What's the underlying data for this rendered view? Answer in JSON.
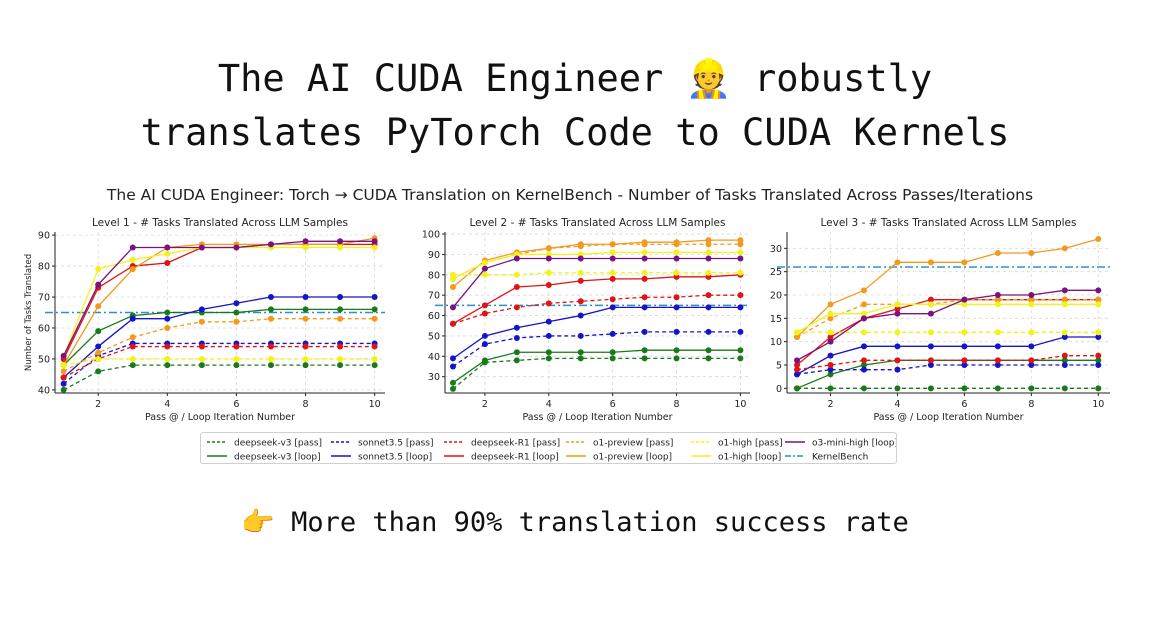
{
  "headline": {
    "line1_before": "The AI CUDA Engineer ",
    "emoji": "👷",
    "line1_after": " robustly",
    "line2": "translates PyTorch Code to CUDA Kernels"
  },
  "tagline": {
    "emoji": "👉",
    "text": " More than 90% translation success rate"
  },
  "chart_data": {
    "suptitle": "The AI CUDA Engineer: Torch → CUDA Translation on KernelBench - Number of Tasks Translated Across Passes/Iterations",
    "legend": [
      {
        "name": "deepseek-v3 [pass]",
        "color": "#1a7a1a",
        "dash": true
      },
      {
        "name": "sonnet3.5 [pass]",
        "color": "#1414c8",
        "dash": true
      },
      {
        "name": "deepseek-R1 [pass]",
        "color": "#e01414",
        "dash": true
      },
      {
        "name": "o1-preview [pass]",
        "color": "#f29a1e",
        "dash": true
      },
      {
        "name": "o1-high [pass]",
        "color": "#f5f21a",
        "dash": true
      },
      {
        "name": "o3-mini-high [loop]",
        "color": "#7a1280",
        "dash": false
      },
      {
        "name": "deepseek-v3 [loop]",
        "color": "#1a7a1a",
        "dash": false
      },
      {
        "name": "sonnet3.5 [loop]",
        "color": "#1414c8",
        "dash": false
      },
      {
        "name": "deepseek-R1 [loop]",
        "color": "#e01414",
        "dash": false
      },
      {
        "name": "o1-preview [loop]",
        "color": "#f29a1e",
        "dash": false
      },
      {
        "name": "o1-high [loop]",
        "color": "#f5f21a",
        "dash": false
      },
      {
        "name": "KernelBench",
        "color": "#2a8fd0",
        "dashdot": true
      }
    ],
    "charts": [
      {
        "type": "line",
        "title": "Level 1 - # Tasks Translated Across LLM Samples",
        "xlabel": "Pass @ / Loop Iteration Number",
        "ylabel": "Number of Tasks Translated",
        "xlim": [
          0.75,
          10.3
        ],
        "ylim": [
          39,
          91
        ],
        "xticks": [
          2,
          4,
          6,
          8,
          10
        ],
        "yticks": [
          40,
          50,
          60,
          70,
          80,
          90
        ],
        "x": [
          1,
          2,
          3,
          4,
          5,
          6,
          7,
          8,
          9,
          10
        ],
        "kernelbench": 65,
        "series": [
          {
            "name": "deepseek-v3 [pass]",
            "values": [
              40,
              46,
              48,
              48,
              48,
              48,
              48,
              48,
              48,
              48
            ]
          },
          {
            "name": "sonnet3.5 [pass]",
            "values": [
              42,
              51,
              55,
              55,
              55,
              55,
              55,
              55,
              55,
              55
            ]
          },
          {
            "name": "deepseek-R1 [pass]",
            "values": [
              44,
              50,
              54,
              54,
              54,
              54,
              54,
              54,
              54,
              54
            ]
          },
          {
            "name": "o1-preview [pass]",
            "values": [
              46,
              52,
              57,
              60,
              62,
              62,
              63,
              63,
              63,
              63
            ]
          },
          {
            "name": "o1-high [pass]",
            "values": [
              48,
              50,
              50,
              50,
              50,
              50,
              50,
              50,
              50,
              50
            ]
          },
          {
            "name": "deepseek-v3 [loop]",
            "values": [
              48,
              59,
              64,
              65,
              65,
              65,
              66,
              66,
              66,
              66
            ]
          },
          {
            "name": "sonnet3.5 [loop]",
            "values": [
              44,
              54,
              63,
              63,
              66,
              68,
              70,
              70,
              70,
              70
            ]
          },
          {
            "name": "deepseek-R1 [loop]",
            "values": [
              50,
              73,
              80,
              81,
              86,
              86,
              87,
              87,
              87,
              87
            ]
          },
          {
            "name": "o1-preview [loop]",
            "values": [
              48,
              67,
              79,
              86,
              87,
              87,
              87,
              87,
              87,
              89
            ]
          },
          {
            "name": "o1-high [loop]",
            "values": [
              51,
              79,
              82,
              84,
              86,
              86,
              86,
              86,
              86,
              86
            ]
          },
          {
            "name": "o3-mini-high [loop]",
            "values": [
              51,
              74,
              86,
              86,
              86,
              86,
              87,
              88,
              88,
              88
            ]
          }
        ]
      },
      {
        "type": "line",
        "title": "Level 2 - # Tasks Translated Across LLM Samples",
        "xlabel": "Pass @ / Loop Iteration Number",
        "ylabel": "",
        "xlim": [
          0.75,
          10.3
        ],
        "ylim": [
          22,
          101
        ],
        "xticks": [
          2,
          4,
          6,
          8,
          10
        ],
        "yticks": [
          30,
          40,
          50,
          60,
          70,
          80,
          90,
          100
        ],
        "x": [
          1,
          2,
          3,
          4,
          5,
          6,
          7,
          8,
          9,
          10
        ],
        "kernelbench": 65,
        "series": [
          {
            "name": "deepseek-v3 [pass]",
            "values": [
              24,
              37,
              38,
              39,
              39,
              39,
              39,
              39,
              39,
              39
            ]
          },
          {
            "name": "sonnet3.5 [pass]",
            "values": [
              35,
              46,
              49,
              50,
              50,
              51,
              52,
              52,
              52,
              52
            ]
          },
          {
            "name": "deepseek-R1 [pass]",
            "values": [
              56,
              61,
              64,
              66,
              67,
              68,
              69,
              69,
              70,
              70
            ]
          },
          {
            "name": "o1-preview [pass]",
            "values": [
              78,
              86,
              90,
              93,
              94,
              95,
              95,
              95,
              95,
              95
            ]
          },
          {
            "name": "o1-high [pass]",
            "values": [
              80,
              80,
              80,
              81,
              81,
              81,
              81,
              81,
              81,
              81
            ]
          },
          {
            "name": "deepseek-v3 [loop]",
            "values": [
              27,
              38,
              42,
              42,
              42,
              42,
              43,
              43,
              43,
              43
            ]
          },
          {
            "name": "sonnet3.5 [loop]",
            "values": [
              39,
              50,
              54,
              57,
              60,
              64,
              64,
              64,
              64,
              64
            ]
          },
          {
            "name": "deepseek-R1 [loop]",
            "values": [
              56,
              65,
              74,
              75,
              77,
              78,
              78,
              79,
              79,
              80
            ]
          },
          {
            "name": "o1-preview [loop]",
            "values": [
              74,
              87,
              91,
              93,
              95,
              95,
              96,
              96,
              97,
              97
            ]
          },
          {
            "name": "o1-high [loop]",
            "values": [
              78,
              86,
              90,
              90,
              90,
              91,
              91,
              91,
              91,
              91
            ]
          },
          {
            "name": "o3-mini-high [loop]",
            "values": [
              64,
              83,
              88,
              88,
              88,
              88,
              88,
              88,
              88,
              88
            ]
          }
        ]
      },
      {
        "type": "line",
        "title": "Level 3 - # Tasks Translated Across LLM Samples",
        "xlabel": "Pass @ / Loop Iteration Number",
        "ylabel": "",
        "xlim": [
          0.7,
          10.35
        ],
        "ylim": [
          -1,
          33.5
        ],
        "xticks": [
          2,
          4,
          6,
          8,
          10
        ],
        "yticks": [
          0,
          5,
          10,
          15,
          20,
          25,
          30
        ],
        "x": [
          1,
          2,
          3,
          4,
          5,
          6,
          7,
          8,
          9,
          10
        ],
        "kernelbench": 26,
        "series": [
          {
            "name": "deepseek-v3 [pass]",
            "values": [
              0,
              0,
              0,
              0,
              0,
              0,
              0,
              0,
              0,
              0
            ]
          },
          {
            "name": "sonnet3.5 [pass]",
            "values": [
              3,
              4,
              4,
              4,
              5,
              5,
              5,
              5,
              5,
              5
            ]
          },
          {
            "name": "deepseek-R1 [pass]",
            "values": [
              4,
              5,
              6,
              6,
              6,
              6,
              6,
              6,
              7,
              7
            ]
          },
          {
            "name": "o1-preview [pass]",
            "values": [
              11,
              15,
              18,
              18,
              18,
              19,
              19,
              19,
              19,
              19
            ]
          },
          {
            "name": "o1-high [pass]",
            "values": [
              12,
              12,
              12,
              12,
              12,
              12,
              12,
              12,
              12,
              12
            ]
          },
          {
            "name": "deepseek-v3 [loop]",
            "values": [
              0,
              3,
              5,
              6,
              6,
              6,
              6,
              6,
              6,
              6
            ]
          },
          {
            "name": "sonnet3.5 [loop]",
            "values": [
              3,
              7,
              9,
              9,
              9,
              9,
              9,
              9,
              11,
              11
            ]
          },
          {
            "name": "deepseek-R1 [loop]",
            "values": [
              5,
              11,
              15,
              17,
              19,
              19,
              19,
              19,
              19,
              19
            ]
          },
          {
            "name": "o1-preview [loop]",
            "values": [
              11,
              18,
              21,
              27,
              27,
              27,
              29,
              29,
              30,
              32
            ]
          },
          {
            "name": "o1-high [loop]",
            "values": [
              12,
              16,
              16,
              18,
              18,
              18,
              18,
              18,
              18,
              18
            ]
          },
          {
            "name": "o3-mini-high [loop]",
            "values": [
              6,
              10,
              15,
              16,
              16,
              19,
              20,
              20,
              21,
              21
            ]
          }
        ]
      }
    ]
  }
}
